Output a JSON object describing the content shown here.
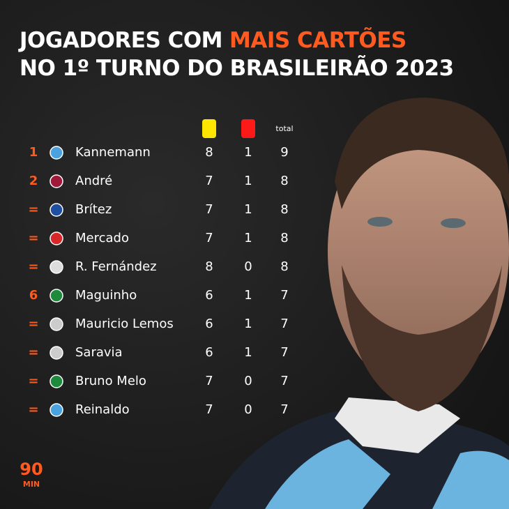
{
  "title": {
    "line1_start": "JOGADORES COM",
    "line1_highlight": "MAIS CARTÕES",
    "line2": "NO 1º TURNO DO BRASILEIRÃO 2023"
  },
  "table": {
    "total_header": "total",
    "rows": [
      {
        "rank": "1",
        "name": "Kannemann",
        "yellow": 8,
        "red": 1,
        "total": 9
      },
      {
        "rank": "2",
        "name": "André",
        "yellow": 7,
        "red": 1,
        "total": 8
      },
      {
        "rank": "=",
        "name": "Brítez",
        "yellow": 7,
        "red": 1,
        "total": 8
      },
      {
        "rank": "=",
        "name": "Mercado",
        "yellow": 7,
        "red": 1,
        "total": 8
      },
      {
        "rank": "=",
        "name": "R. Fernández",
        "yellow": 8,
        "red": 0,
        "total": 8
      },
      {
        "rank": "6",
        "name": "Maguinho",
        "yellow": 6,
        "red": 1,
        "total": 7
      },
      {
        "rank": "=",
        "name": "Mauricio Lemos",
        "yellow": 6,
        "red": 1,
        "total": 7
      },
      {
        "rank": "=",
        "name": "Saravia",
        "yellow": 6,
        "red": 1,
        "total": 7
      },
      {
        "rank": "=",
        "name": "Bruno Melo",
        "yellow": 7,
        "red": 0,
        "total": 7
      },
      {
        "rank": "=",
        "name": "Reinaldo",
        "yellow": 7,
        "red": 0,
        "total": 7
      }
    ]
  },
  "logo": {
    "top": "90",
    "bottom": "MIN"
  }
}
